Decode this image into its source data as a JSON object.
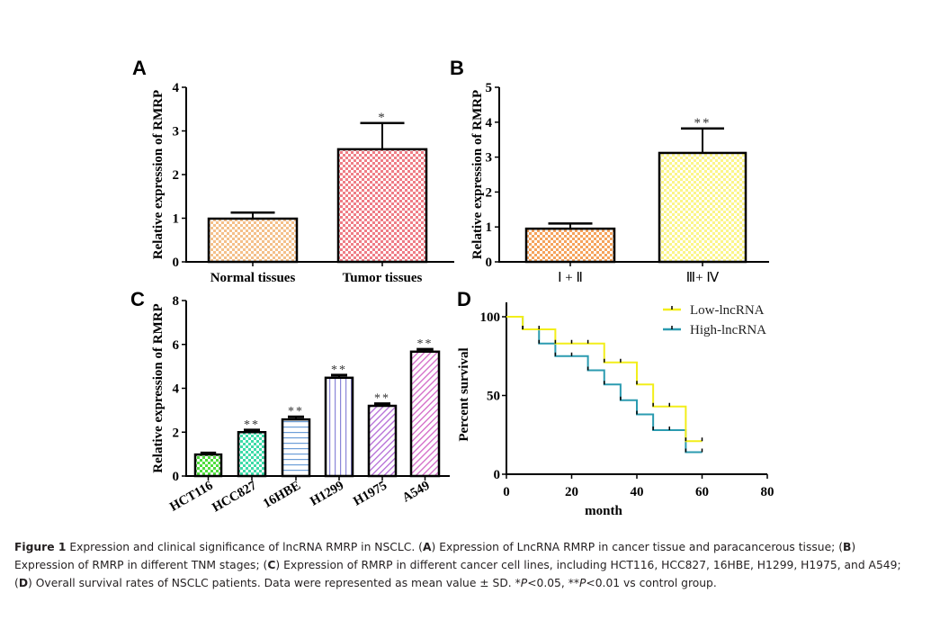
{
  "chart_data": [
    {
      "panel": "A",
      "type": "bar",
      "ylabel": "Relative expression of RMRP",
      "xlabel": "",
      "ylim": [
        0,
        4
      ],
      "yticks": [
        0,
        1,
        2,
        3,
        4
      ],
      "categories": [
        "Normal tissues",
        "Tumor tissues"
      ],
      "values": [
        0.99,
        2.58
      ],
      "error": [
        0.14,
        0.6
      ],
      "significance": [
        "",
        "*"
      ],
      "fills": [
        {
          "pattern": "checker",
          "color": "#f4c08a"
        },
        {
          "pattern": "checker",
          "color": "#ef7d86"
        }
      ]
    },
    {
      "panel": "B",
      "type": "bar",
      "ylabel": "Relative expression of RMRP",
      "xlabel": "",
      "ylim": [
        0,
        5
      ],
      "yticks": [
        0,
        1,
        2,
        3,
        4,
        5
      ],
      "categories": [
        "Ⅰ + Ⅱ",
        "Ⅲ+ Ⅳ"
      ],
      "values": [
        0.95,
        3.12
      ],
      "error": [
        0.15,
        0.7
      ],
      "significance": [
        "",
        "**"
      ],
      "fills": [
        {
          "pattern": "checker",
          "color": "#f5a35c"
        },
        {
          "pattern": "checker",
          "color": "#fbf58a"
        }
      ]
    },
    {
      "panel": "C",
      "type": "bar",
      "ylabel": "Relative expression of RMRP",
      "xlabel": "",
      "ylim": [
        0,
        8
      ],
      "yticks": [
        0,
        2,
        4,
        6,
        8
      ],
      "categories": [
        "HCT116",
        "HCC827",
        "16HBE",
        "H1299",
        "H1975",
        "A549"
      ],
      "values": [
        0.98,
        2.0,
        2.58,
        4.48,
        3.2,
        5.67
      ],
      "error": [
        0.07,
        0.1,
        0.12,
        0.12,
        0.1,
        0.11
      ],
      "significance": [
        "",
        "**",
        "**",
        "**",
        "**",
        "**"
      ],
      "fills": [
        {
          "pattern": "checker",
          "color": "#4fdc3c"
        },
        {
          "pattern": "checker",
          "color": "#3ddba8"
        },
        {
          "pattern": "hlines",
          "color": "#6c9ed8"
        },
        {
          "pattern": "vlines",
          "color": "#8a86d8"
        },
        {
          "pattern": "diag",
          "color": "#b36ad6"
        },
        {
          "pattern": "diag",
          "color": "#d267c6"
        }
      ]
    },
    {
      "panel": "D",
      "type": "line",
      "subtype": "kaplan-meier",
      "xlabel": "month",
      "ylabel": "Percent survival",
      "xlim": [
        0,
        80
      ],
      "ylim": [
        0,
        100
      ],
      "xticks": [
        0,
        20,
        40,
        60,
        80
      ],
      "yticks": [
        0,
        50,
        100
      ],
      "legend": "top-right",
      "series": [
        {
          "name": "Low-lncRNA",
          "color": "#f2ee1a",
          "steps": [
            [
              0,
              100
            ],
            [
              5,
              92
            ],
            [
              15,
              83
            ],
            [
              30,
              71
            ],
            [
              40,
              57
            ],
            [
              45,
              43
            ],
            [
              55,
              21
            ],
            [
              60,
              21
            ]
          ],
          "censored": [
            [
              10,
              92
            ],
            [
              20,
              83
            ],
            [
              25,
              83
            ],
            [
              35,
              71
            ],
            [
              50,
              43
            ],
            [
              60,
              21
            ]
          ]
        },
        {
          "name": "High-lncRNA",
          "color": "#2b9bb0",
          "steps": [
            [
              0,
              100
            ],
            [
              5,
              92
            ],
            [
              10,
              83
            ],
            [
              15,
              75
            ],
            [
              25,
              66
            ],
            [
              30,
              57
            ],
            [
              35,
              47
            ],
            [
              40,
              38
            ],
            [
              45,
              28
            ],
            [
              55,
              14
            ],
            [
              60,
              14
            ]
          ],
          "censored": [
            [
              20,
              75
            ],
            [
              50,
              28
            ],
            [
              60,
              14
            ]
          ]
        }
      ]
    }
  ],
  "caption": {
    "figure_label": "Figure 1",
    "parts": [
      {
        "t": " Expression and clinical significance of lncRNA RMRP in NSCLC. ("
      },
      {
        "b": "A"
      },
      {
        "t": ") Expression of LncRNA RMRP in cancer tissue and paracancerous tissue; ("
      },
      {
        "b": "B"
      },
      {
        "t": ") Expression of RMRP in different TNM stages; ("
      },
      {
        "b": "C"
      },
      {
        "t": ") Expression of RMRP in different cancer cell lines, including HCT116, HCC827, 16HBE, H1299, H1975, and A549; ("
      },
      {
        "b": "D"
      },
      {
        "t": ") Overall survival rates of NSCLC patients. Data were represented as mean value ± SD. *"
      },
      {
        "i": "P"
      },
      {
        "t": "<0.05, **"
      },
      {
        "i": "P"
      },
      {
        "t": "<0.01 vs control group."
      }
    ]
  }
}
